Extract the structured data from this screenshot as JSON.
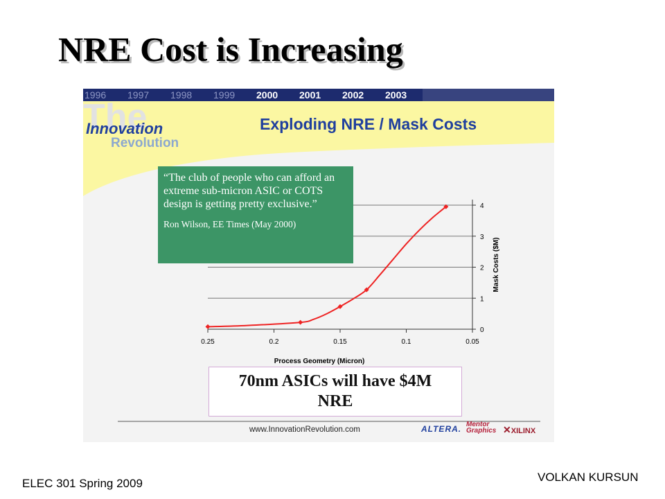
{
  "slide": {
    "title": "NRE Cost is Increasing",
    "footer_left": "ELEC 301 Spring 2009",
    "footer_right": "VOLKAN KURSUN"
  },
  "banner": {
    "years": [
      "1996",
      "1997",
      "1998",
      "1999",
      "2000",
      "2001",
      "2002",
      "2003"
    ],
    "watermark": "The",
    "brand_line1": "Innovation",
    "brand_line2": "Revolution",
    "heading": "Exploding NRE / Mask Costs"
  },
  "quote": {
    "text": "“The club of people who can afford an extreme sub-micron ASIC or COTS design is getting pretty exclusive.”",
    "attribution": "Ron Wilson, EE Times (May 2000)"
  },
  "callout": {
    "line1": "70nm ASICs will have $4M",
    "line2": "NRE"
  },
  "footer_bar": {
    "url": "www.InnovationRevolution.com",
    "logos": {
      "altera": "ALTERA.",
      "mentor": "Mentor Graphics",
      "xilinx": "XILINX"
    }
  },
  "colors": {
    "banner_yellow": "#fbf7a2",
    "year_bar_navy": "#1d2b6e",
    "quote_green": "#3c9566",
    "line_red": "#ee2222",
    "heading_blue": "#1f3f9e"
  },
  "chart_data": {
    "type": "line",
    "title": "Exploding NRE / Mask Costs",
    "xlabel": "Process Geometry (Micron)",
    "ylabel": "Mask Costs ($M)",
    "x_ticks": [
      "0.25",
      "0.2",
      "0.15",
      "0.1",
      "0.05"
    ],
    "y_ticks": [
      "0",
      "1",
      "2",
      "3",
      "4"
    ],
    "xlim": [
      0.25,
      0.05
    ],
    "ylim": [
      0,
      4
    ],
    "x_reversed": true,
    "y_axis_side": "right",
    "grid": "horizontal",
    "series": [
      {
        "color": "#ee2222",
        "points": [
          {
            "x": 0.25,
            "y": 0.08
          },
          {
            "x": 0.18,
            "y": 0.22
          },
          {
            "x": 0.15,
            "y": 0.73
          },
          {
            "x": 0.13,
            "y": 1.27
          },
          {
            "x": 0.07,
            "y": 3.95
          }
        ],
        "curve": [
          {
            "x": 0.25,
            "y": 0.08
          },
          {
            "x": 0.22,
            "y": 0.12
          },
          {
            "x": 0.18,
            "y": 0.22
          },
          {
            "x": 0.17,
            "y": 0.32
          },
          {
            "x": 0.16,
            "y": 0.5
          },
          {
            "x": 0.15,
            "y": 0.73
          },
          {
            "x": 0.14,
            "y": 0.98
          },
          {
            "x": 0.13,
            "y": 1.27
          },
          {
            "x": 0.12,
            "y": 1.75
          },
          {
            "x": 0.11,
            "y": 2.25
          },
          {
            "x": 0.1,
            "y": 2.75
          },
          {
            "x": 0.09,
            "y": 3.2
          },
          {
            "x": 0.08,
            "y": 3.6
          },
          {
            "x": 0.07,
            "y": 3.95
          }
        ]
      }
    ]
  }
}
